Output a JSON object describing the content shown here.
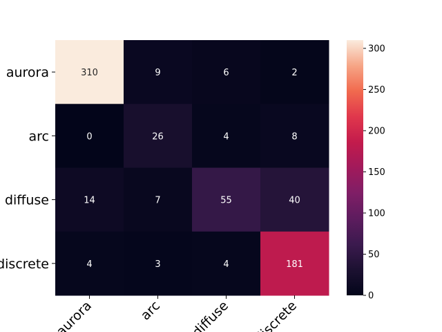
{
  "chart_data": {
    "type": "heatmap",
    "row_labels": [
      "aurora",
      "arc",
      "diffuse",
      "discrete"
    ],
    "col_labels": [
      "aurora",
      "arc",
      "diffuse",
      "discrete"
    ],
    "values": [
      [
        310,
        9,
        6,
        2
      ],
      [
        0,
        26,
        4,
        8
      ],
      [
        14,
        7,
        55,
        40
      ],
      [
        4,
        3,
        4,
        181
      ]
    ],
    "colorbar": {
      "range": [
        0,
        310
      ],
      "ticks": [
        0,
        50,
        100,
        150,
        200,
        250,
        300
      ],
      "colormap": "rocket"
    },
    "xtick_rotation_deg": 45
  }
}
